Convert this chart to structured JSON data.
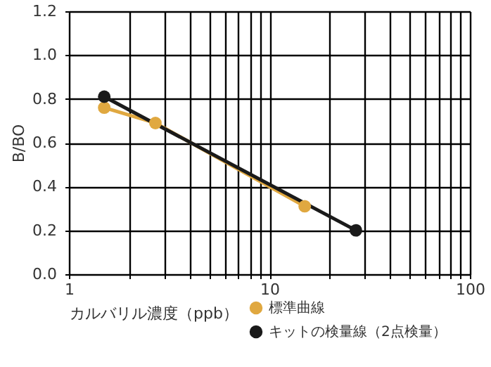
{
  "chart_data": {
    "type": "line",
    "xlabel": "カルバリル濃度（ppb）",
    "ylabel": "B/BO",
    "series": [
      {
        "name": "標準曲線",
        "color": "#e0a840",
        "x": [
          1.5,
          2.7,
          15
        ],
        "values": [
          0.76,
          0.69,
          0.31
        ]
      },
      {
        "name": "キットの検量線（2点検量）",
        "color": "#1a1a1a",
        "x": [
          1.5,
          27
        ],
        "values": [
          0.81,
          0.2
        ]
      }
    ],
    "log": "x",
    "xlim": [
      1,
      100
    ],
    "ylim": [
      0,
      1.2
    ],
    "xticks": [
      1,
      {
        "value": 2,
        "label": null
      },
      {
        "value": 3,
        "label": null
      },
      {
        "value": 4,
        "label": null
      },
      {
        "value": 5,
        "label": null
      },
      {
        "value": 6,
        "label": null
      },
      {
        "value": 7,
        "label": null
      },
      {
        "value": 8,
        "label": null
      },
      {
        "value": 9,
        "label": null
      },
      10,
      {
        "value": 20,
        "label": null
      },
      {
        "value": 30,
        "label": null
      },
      {
        "value": 40,
        "label": null
      },
      {
        "value": 50,
        "label": null
      },
      {
        "value": 60,
        "label": null
      },
      {
        "value": 70,
        "label": null
      },
      {
        "value": 80,
        "label": null
      },
      {
        "value": 90,
        "label": null
      },
      100
    ],
    "yticks": [
      {
        "value": 0,
        "label": "0.0"
      },
      {
        "value": 0.2,
        "label": "0.2"
      },
      {
        "value": 0.4,
        "label": "0.4"
      },
      {
        "value": 0.6,
        "label": "0.6"
      },
      {
        "value": 0.8,
        "label": "0.8"
      },
      {
        "value": 1.0,
        "label": "1.0"
      },
      {
        "value": 1.2,
        "label": "1.2"
      }
    ],
    "grid": true,
    "legend": "bottom right",
    "marker": "circle",
    "line_style": "solid"
  }
}
